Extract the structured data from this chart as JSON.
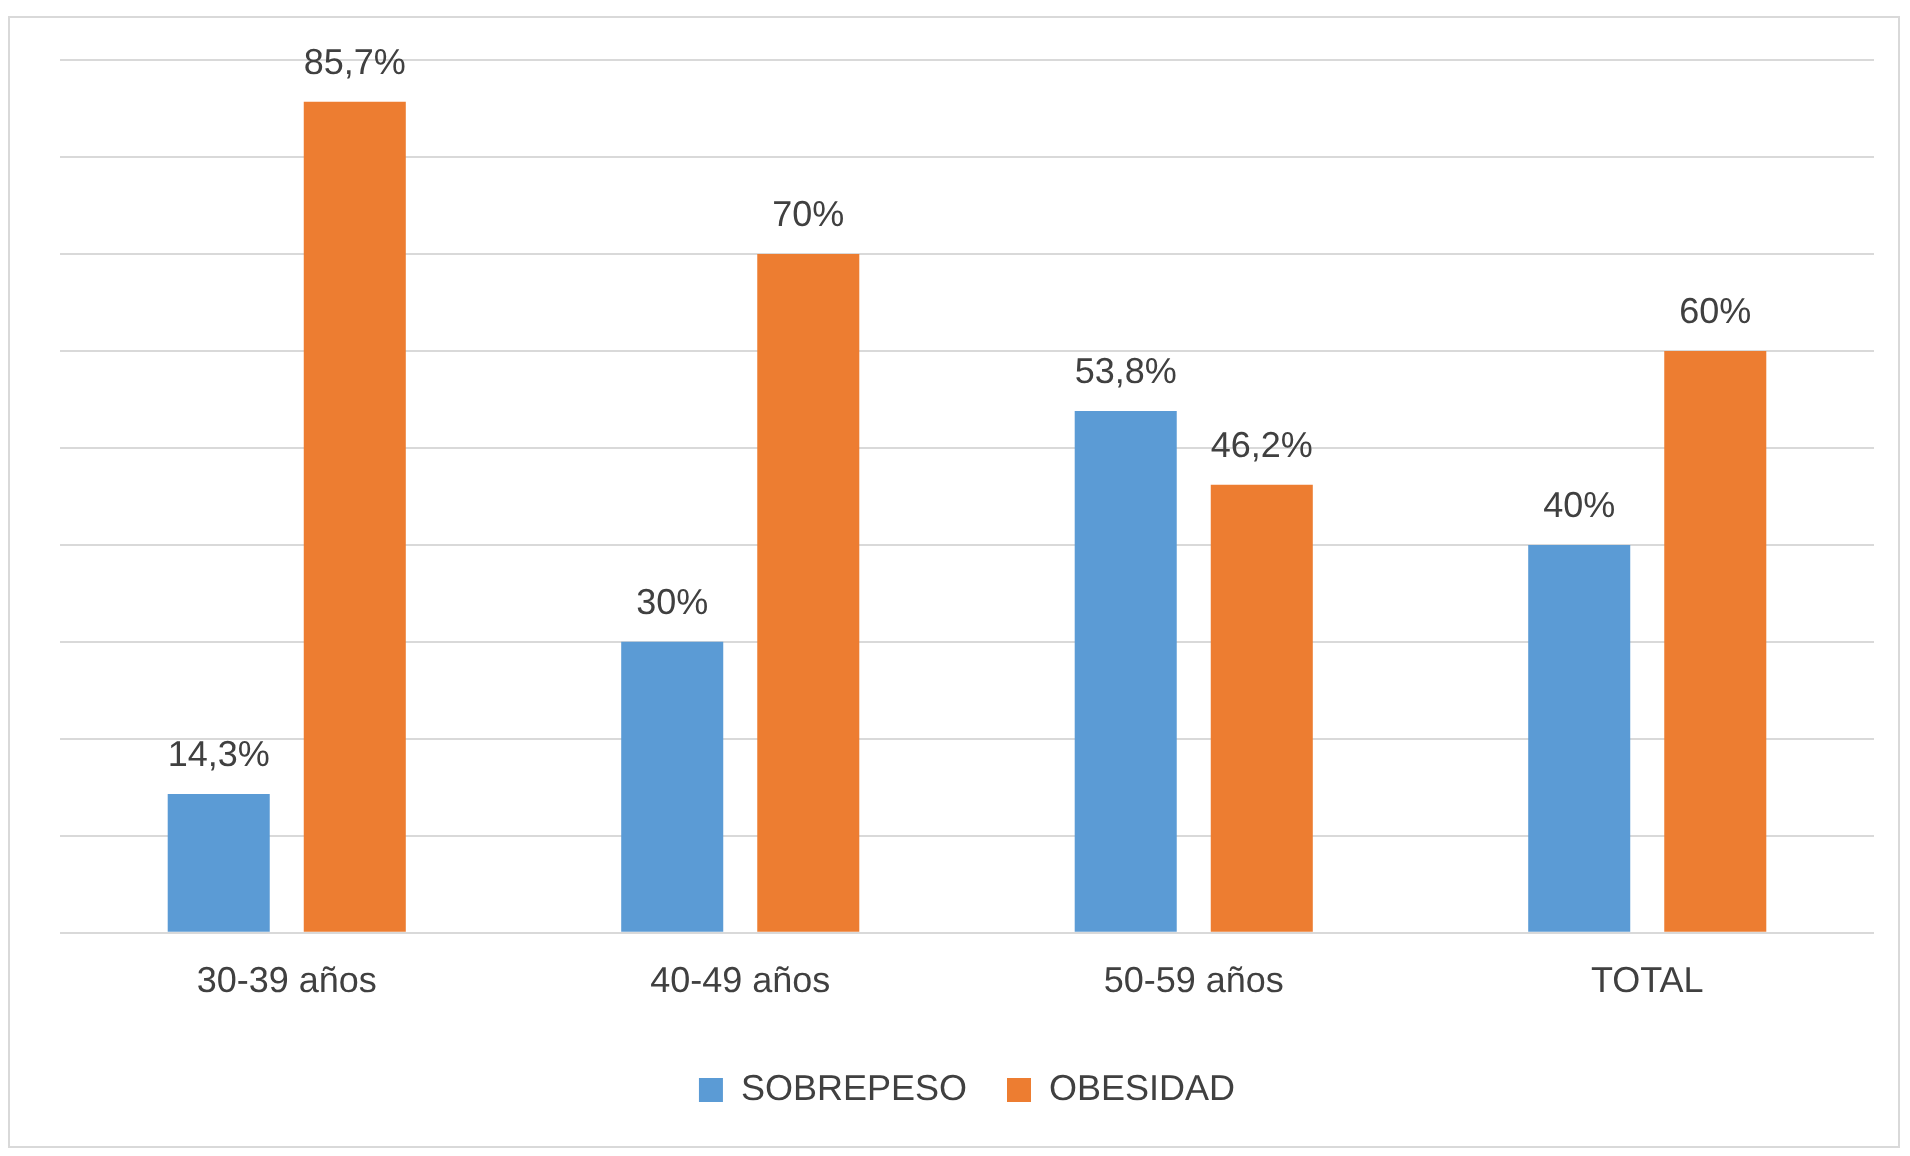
{
  "chart_data": {
    "type": "bar",
    "categories": [
      "30-39 años",
      "40-49 años",
      "50-59 años",
      "TOTAL"
    ],
    "series": [
      {
        "name": "SOBREPESO",
        "color": "#5b9bd5",
        "values": [
          14.3,
          30,
          53.8,
          40
        ],
        "value_labels": [
          "14,3%",
          "30%",
          "53,8%",
          "40%"
        ]
      },
      {
        "name": "OBESIDAD",
        "color": "#ed7d31",
        "values": [
          85.7,
          70,
          46.2,
          60
        ],
        "value_labels": [
          "85,7%",
          "70%",
          "46,2%",
          "60%"
        ]
      }
    ],
    "ylim": [
      0,
      90
    ],
    "yticks": [
      {
        "value": 0,
        "label": null
      },
      {
        "value": 10,
        "label": null
      },
      {
        "value": 20,
        "label": null
      },
      {
        "value": 30,
        "label": null
      },
      {
        "value": 40,
        "label": null
      },
      {
        "value": 50,
        "label": null
      },
      {
        "value": 60,
        "label": null
      },
      {
        "value": 70,
        "label": null
      },
      {
        "value": 80,
        "label": null
      },
      {
        "value": 90,
        "label": null
      }
    ],
    "grid": "y",
    "legend": "bottom",
    "tick_labels": "x"
  }
}
